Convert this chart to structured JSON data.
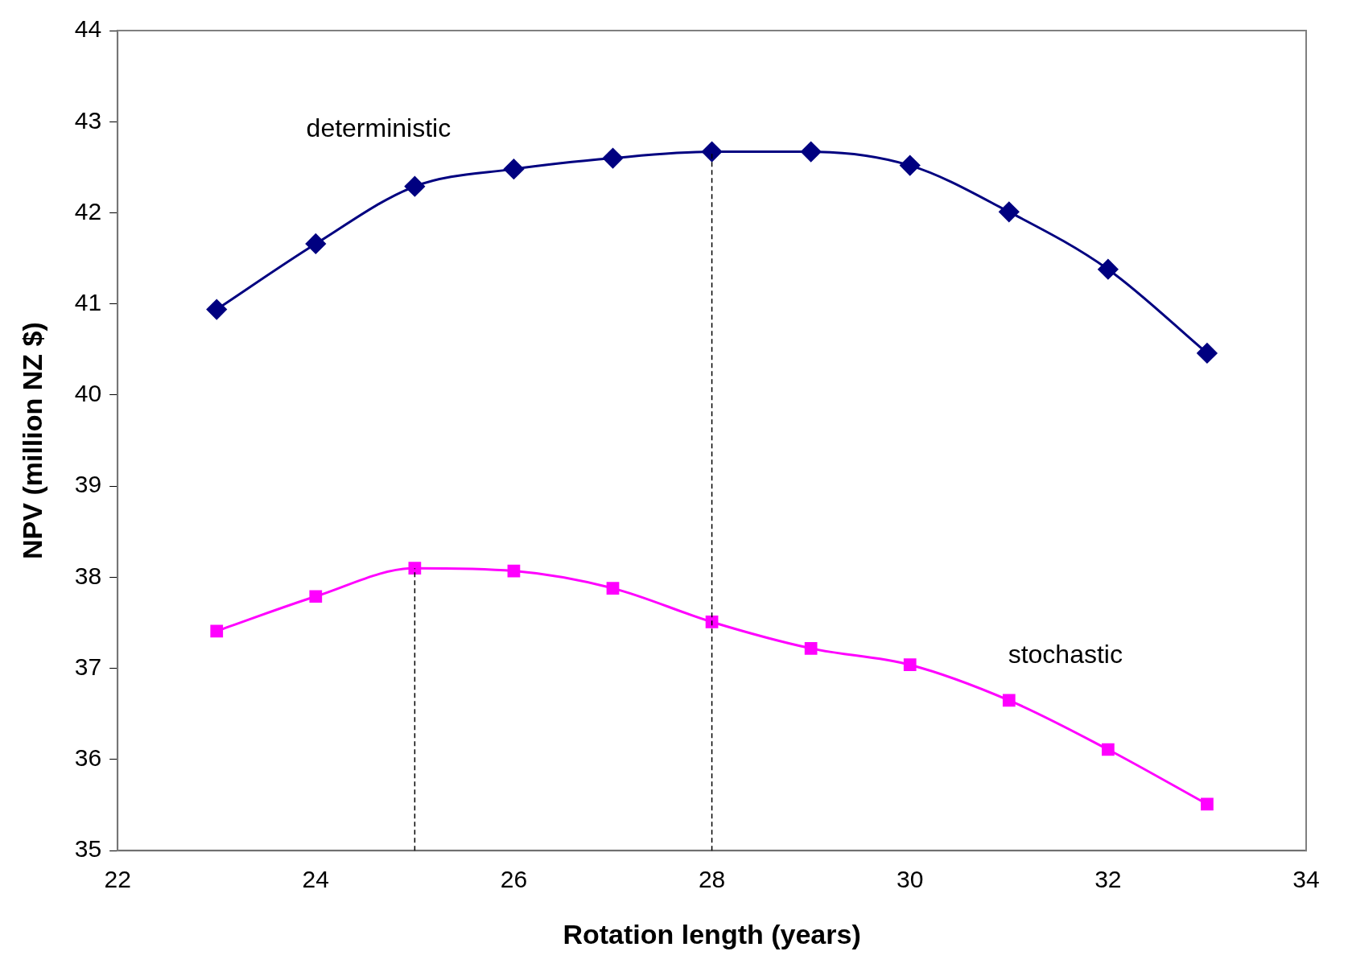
{
  "chart_data": {
    "type": "line",
    "xlabel": "Rotation length (years)",
    "ylabel": "NPV (million NZ $)",
    "x": [
      23,
      24,
      25,
      26,
      27,
      28,
      29,
      30,
      31,
      32,
      33
    ],
    "series": [
      {
        "name": "deterministic",
        "color": "#000080",
        "marker": "diamond",
        "values": [
          40.94,
          41.66,
          42.29,
          42.48,
          42.6,
          42.67,
          42.67,
          42.52,
          42.01,
          41.38,
          40.46
        ]
      },
      {
        "name": "stochastic",
        "color": "#ff00ff",
        "marker": "square",
        "values": [
          37.41,
          37.79,
          38.1,
          38.07,
          37.88,
          37.51,
          37.22,
          37.04,
          36.65,
          36.11,
          35.51
        ]
      }
    ],
    "xlim": [
      22,
      34
    ],
    "xticks": [
      22,
      24,
      26,
      28,
      30,
      32,
      34
    ],
    "ylim": [
      35,
      44
    ],
    "yticks": [
      35,
      36,
      37,
      38,
      39,
      40,
      41,
      42,
      43,
      44
    ],
    "ref_lines": [
      {
        "axis": "x",
        "value": 25,
        "color": "#000000",
        "line_style": "dashed"
      },
      {
        "axis": "x",
        "value": 28,
        "color": "#000000",
        "line_style": "dashed"
      }
    ],
    "grid": false,
    "legend": false,
    "line_style": "solid"
  }
}
